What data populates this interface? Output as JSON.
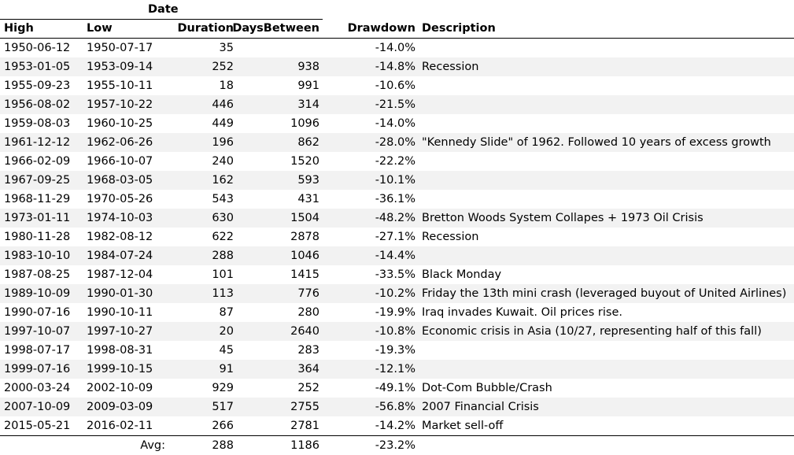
{
  "header": {
    "group_label": "Date",
    "columns": {
      "high": "High",
      "low": "Low",
      "duration": "Duration",
      "days_between": "DaysBetween",
      "drawdown": "Drawdown",
      "description": "Description"
    }
  },
  "rows": [
    {
      "high": "1950-06-12",
      "low": "1950-07-17",
      "duration": "35",
      "days_between": "",
      "drawdown": "-14.0%",
      "description": ""
    },
    {
      "high": "1953-01-05",
      "low": "1953-09-14",
      "duration": "252",
      "days_between": "938",
      "drawdown": "-14.8%",
      "description": "Recession"
    },
    {
      "high": "1955-09-23",
      "low": "1955-10-11",
      "duration": "18",
      "days_between": "991",
      "drawdown": "-10.6%",
      "description": ""
    },
    {
      "high": "1956-08-02",
      "low": "1957-10-22",
      "duration": "446",
      "days_between": "314",
      "drawdown": "-21.5%",
      "description": ""
    },
    {
      "high": "1959-08-03",
      "low": "1960-10-25",
      "duration": "449",
      "days_between": "1096",
      "drawdown": "-14.0%",
      "description": ""
    },
    {
      "high": "1961-12-12",
      "low": "1962-06-26",
      "duration": "196",
      "days_between": "862",
      "drawdown": "-28.0%",
      "description": "\"Kennedy Slide\" of 1962. Followed 10 years of excess growth"
    },
    {
      "high": "1966-02-09",
      "low": "1966-10-07",
      "duration": "240",
      "days_between": "1520",
      "drawdown": "-22.2%",
      "description": ""
    },
    {
      "high": "1967-09-25",
      "low": "1968-03-05",
      "duration": "162",
      "days_between": "593",
      "drawdown": "-10.1%",
      "description": ""
    },
    {
      "high": "1968-11-29",
      "low": "1970-05-26",
      "duration": "543",
      "days_between": "431",
      "drawdown": "-36.1%",
      "description": ""
    },
    {
      "high": "1973-01-11",
      "low": "1974-10-03",
      "duration": "630",
      "days_between": "1504",
      "drawdown": "-48.2%",
      "description": "Bretton Woods System Collapes + 1973 Oil Crisis"
    },
    {
      "high": "1980-11-28",
      "low": "1982-08-12",
      "duration": "622",
      "days_between": "2878",
      "drawdown": "-27.1%",
      "description": "Recession"
    },
    {
      "high": "1983-10-10",
      "low": "1984-07-24",
      "duration": "288",
      "days_between": "1046",
      "drawdown": "-14.4%",
      "description": ""
    },
    {
      "high": "1987-08-25",
      "low": "1987-12-04",
      "duration": "101",
      "days_between": "1415",
      "drawdown": "-33.5%",
      "description": "Black Monday"
    },
    {
      "high": "1989-10-09",
      "low": "1990-01-30",
      "duration": "113",
      "days_between": "776",
      "drawdown": "-10.2%",
      "description": "Friday the 13th mini crash (leveraged buyout of United Airlines)"
    },
    {
      "high": "1990-07-16",
      "low": "1990-10-11",
      "duration": "87",
      "days_between": "280",
      "drawdown": "-19.9%",
      "description": "Iraq invades Kuwait. Oil prices rise."
    },
    {
      "high": "1997-10-07",
      "low": "1997-10-27",
      "duration": "20",
      "days_between": "2640",
      "drawdown": "-10.8%",
      "description": "Economic crisis in Asia (10/27, representing half of this fall)"
    },
    {
      "high": "1998-07-17",
      "low": "1998-08-31",
      "duration": "45",
      "days_between": "283",
      "drawdown": "-19.3%",
      "description": ""
    },
    {
      "high": "1999-07-16",
      "low": "1999-10-15",
      "duration": "91",
      "days_between": "364",
      "drawdown": "-12.1%",
      "description": ""
    },
    {
      "high": "2000-03-24",
      "low": "2002-10-09",
      "duration": "929",
      "days_between": "252",
      "drawdown": "-49.1%",
      "description": "Dot-Com Bubble/Crash"
    },
    {
      "high": "2007-10-09",
      "low": "2009-03-09",
      "duration": "517",
      "days_between": "2755",
      "drawdown": "-56.8%",
      "description": "2007 Financial Crisis"
    },
    {
      "high": "2015-05-21",
      "low": "2016-02-11",
      "duration": "266",
      "days_between": "2781",
      "drawdown": "-14.2%",
      "description": "Market sell-off"
    }
  ],
  "average": {
    "label": "Avg:",
    "duration": "288",
    "days_between": "1186",
    "drawdown": "-23.2%"
  }
}
